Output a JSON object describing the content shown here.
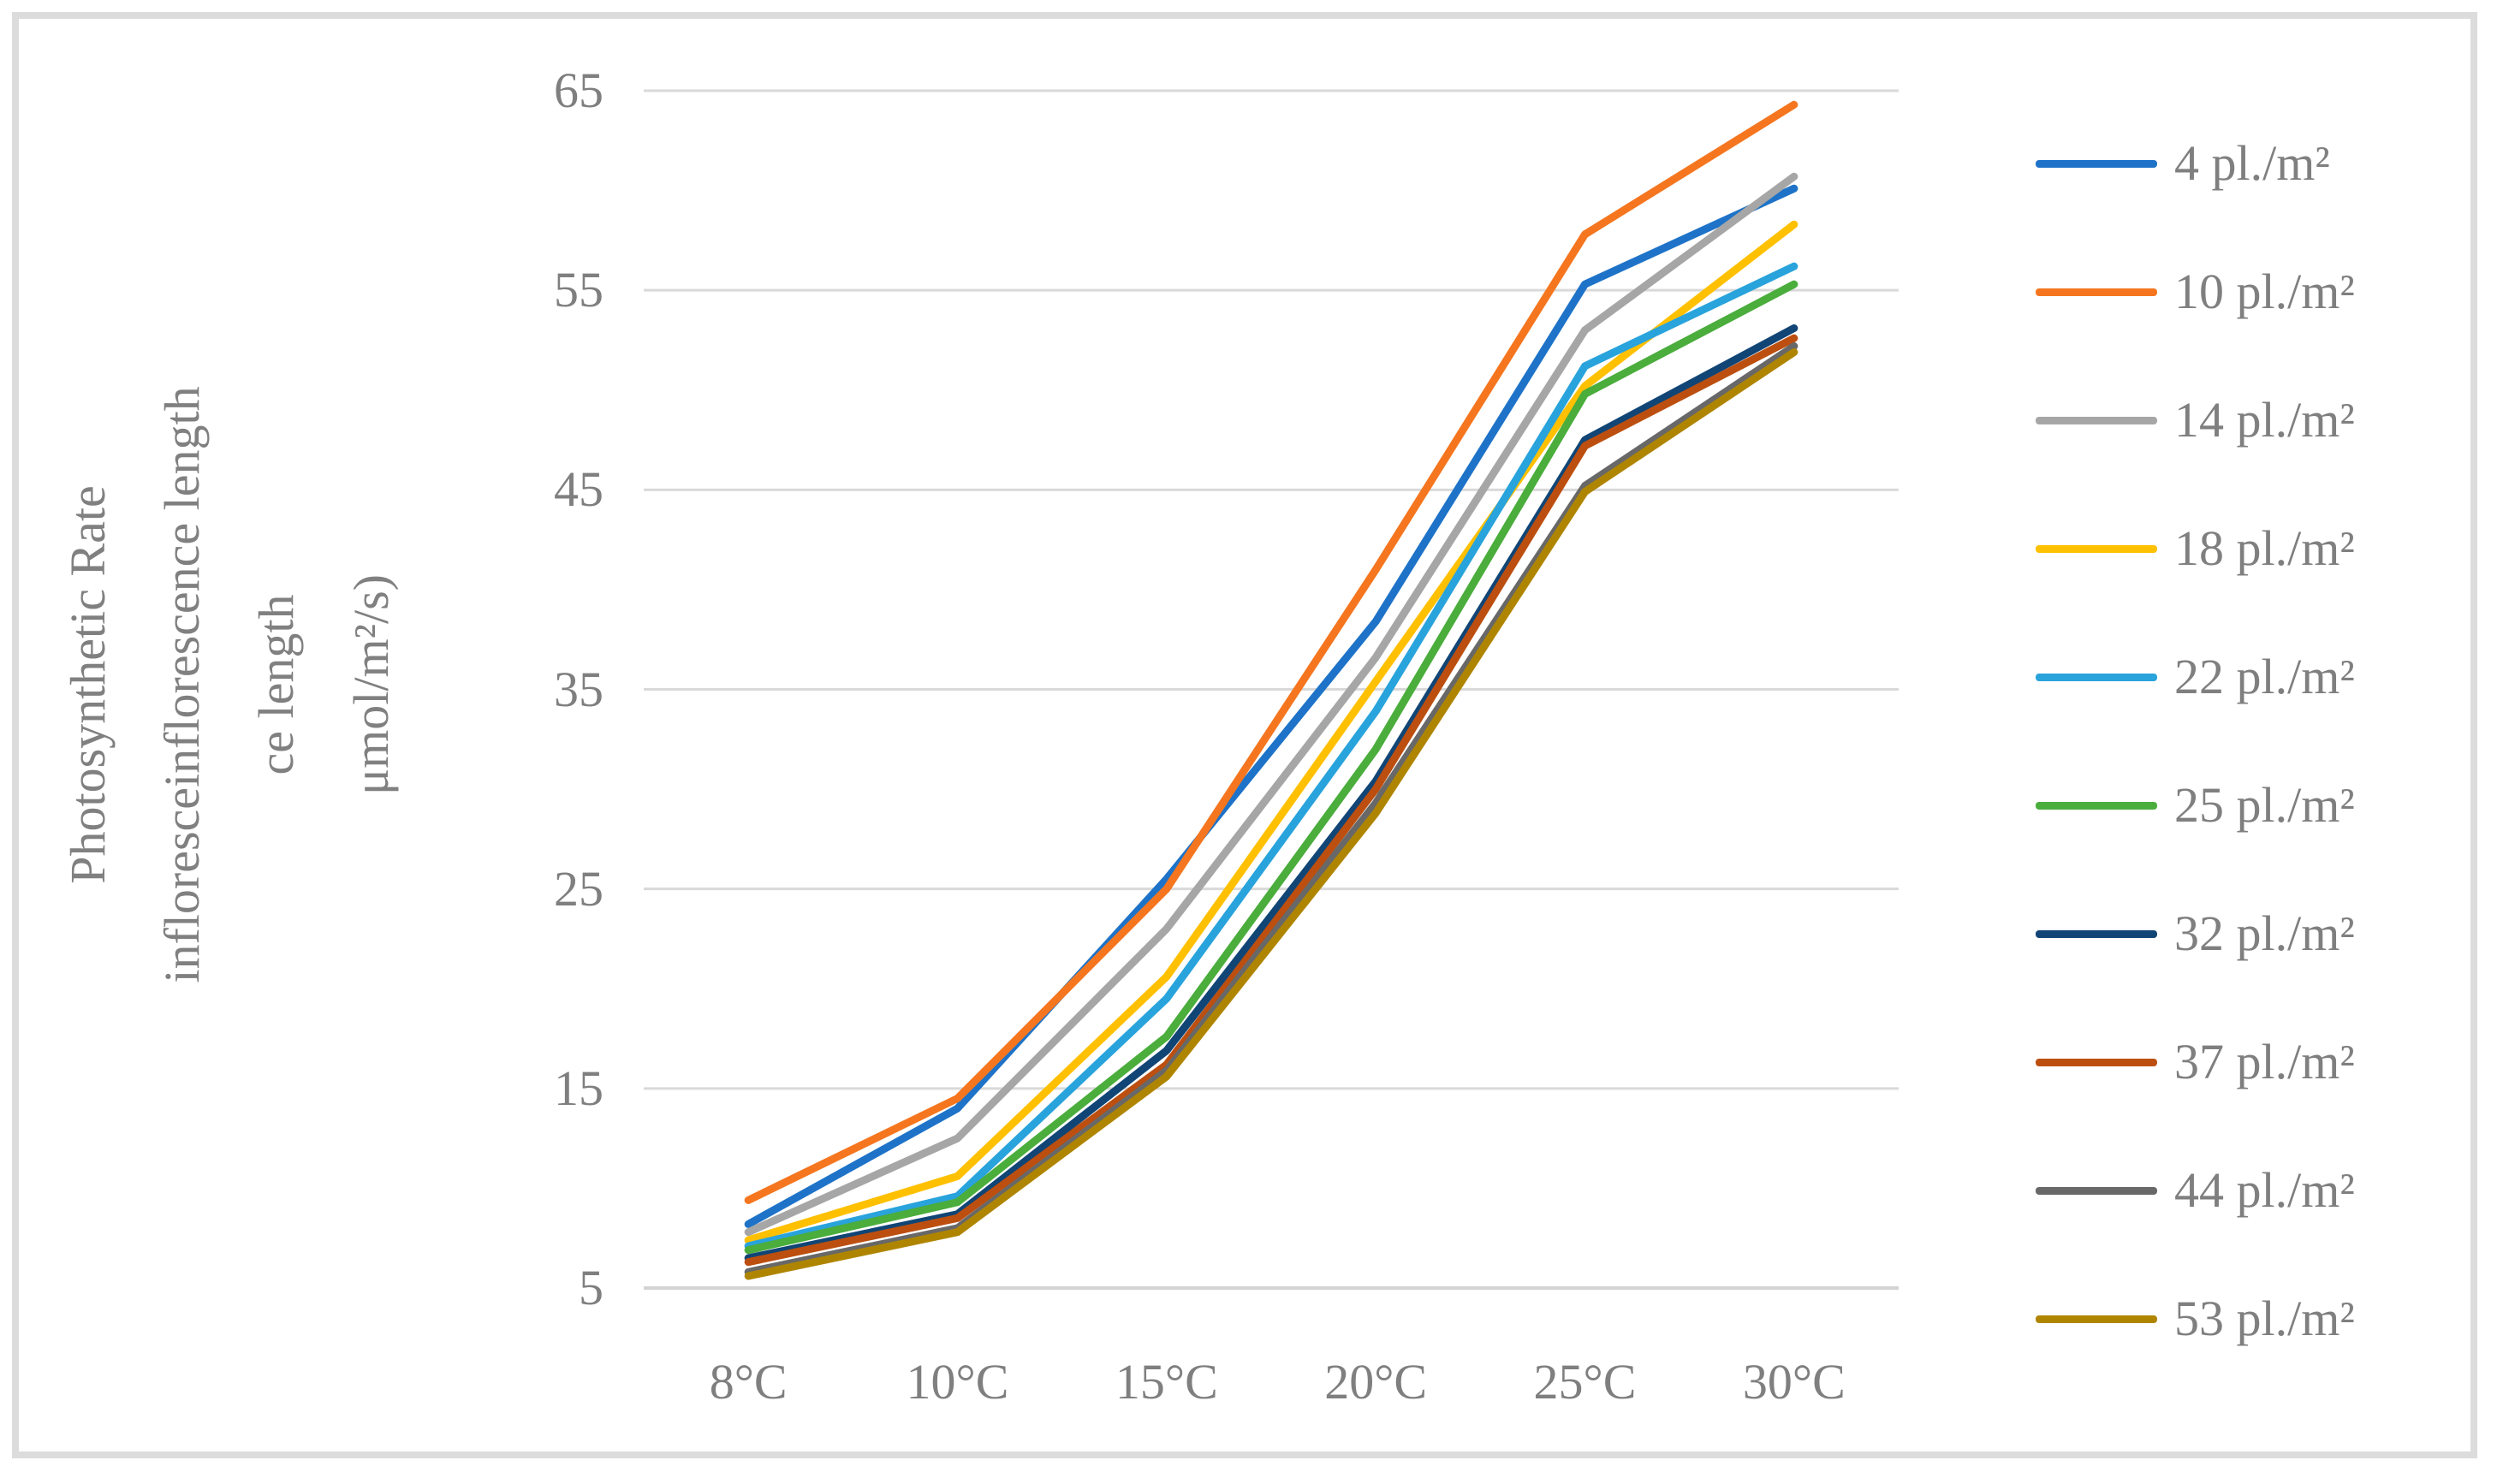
{
  "frame": {
    "border_color": "#DCDCDC"
  },
  "chart_data": {
    "type": "line",
    "title": "",
    "ylabel_lines": [
      "Photosynthetic Rate",
      "infloresceinflorescence length",
      "ce length",
      "μmol/m²/s)"
    ],
    "xlabel": "",
    "categories": [
      "8°C",
      "10°C",
      "15°C",
      "20°C",
      "25°C",
      "30°C"
    ],
    "y_ticks": [
      5,
      15,
      25,
      35,
      45,
      55,
      65
    ],
    "ylim": [
      5,
      65
    ],
    "grid": true,
    "legend_position": "right",
    "text_color": "#7F7F7F",
    "gridline_color": "#D9D9D9",
    "axisline_color": "#D3D3D3",
    "series": [
      {
        "name": "4 pl./m²",
        "color": "#1E73C8",
        "values": [
          8.2,
          14.0,
          25.5,
          38.4,
          55.3,
          60.1
        ]
      },
      {
        "name": "10 pl./m²",
        "color": "#F5761F",
        "values": [
          9.4,
          14.5,
          25.0,
          41.0,
          57.8,
          64.3
        ]
      },
      {
        "name": "14 pl./m²",
        "color": "#A6A6A6",
        "values": [
          7.8,
          12.5,
          23.0,
          36.6,
          53.0,
          60.7
        ]
      },
      {
        "name": "18 pl./m²",
        "color": "#FFC000",
        "values": [
          7.4,
          10.6,
          20.6,
          35.4,
          50.2,
          58.3
        ]
      },
      {
        "name": "22 pl./m²",
        "color": "#29A3DC",
        "values": [
          7.1,
          9.6,
          19.5,
          33.9,
          51.2,
          56.2
        ]
      },
      {
        "name": "25 pl./m²",
        "color": "#4AAD3C",
        "values": [
          6.9,
          9.3,
          17.6,
          32.0,
          49.8,
          55.3
        ]
      },
      {
        "name": "32 pl./m²",
        "color": "#114575",
        "values": [
          6.5,
          8.7,
          16.9,
          30.4,
          47.5,
          53.1
        ]
      },
      {
        "name": "37 pl./m²",
        "color": "#BC4F10",
        "values": [
          6.3,
          8.5,
          16.2,
          30.0,
          47.2,
          52.6
        ]
      },
      {
        "name": "44 pl./m²",
        "color": "#686868",
        "values": [
          5.8,
          8.0,
          15.9,
          29.3,
          45.2,
          52.2
        ]
      },
      {
        "name": "53 pl./m²",
        "color": "#AF8500",
        "values": [
          5.6,
          7.8,
          15.6,
          28.8,
          44.9,
          51.9
        ]
      }
    ]
  }
}
